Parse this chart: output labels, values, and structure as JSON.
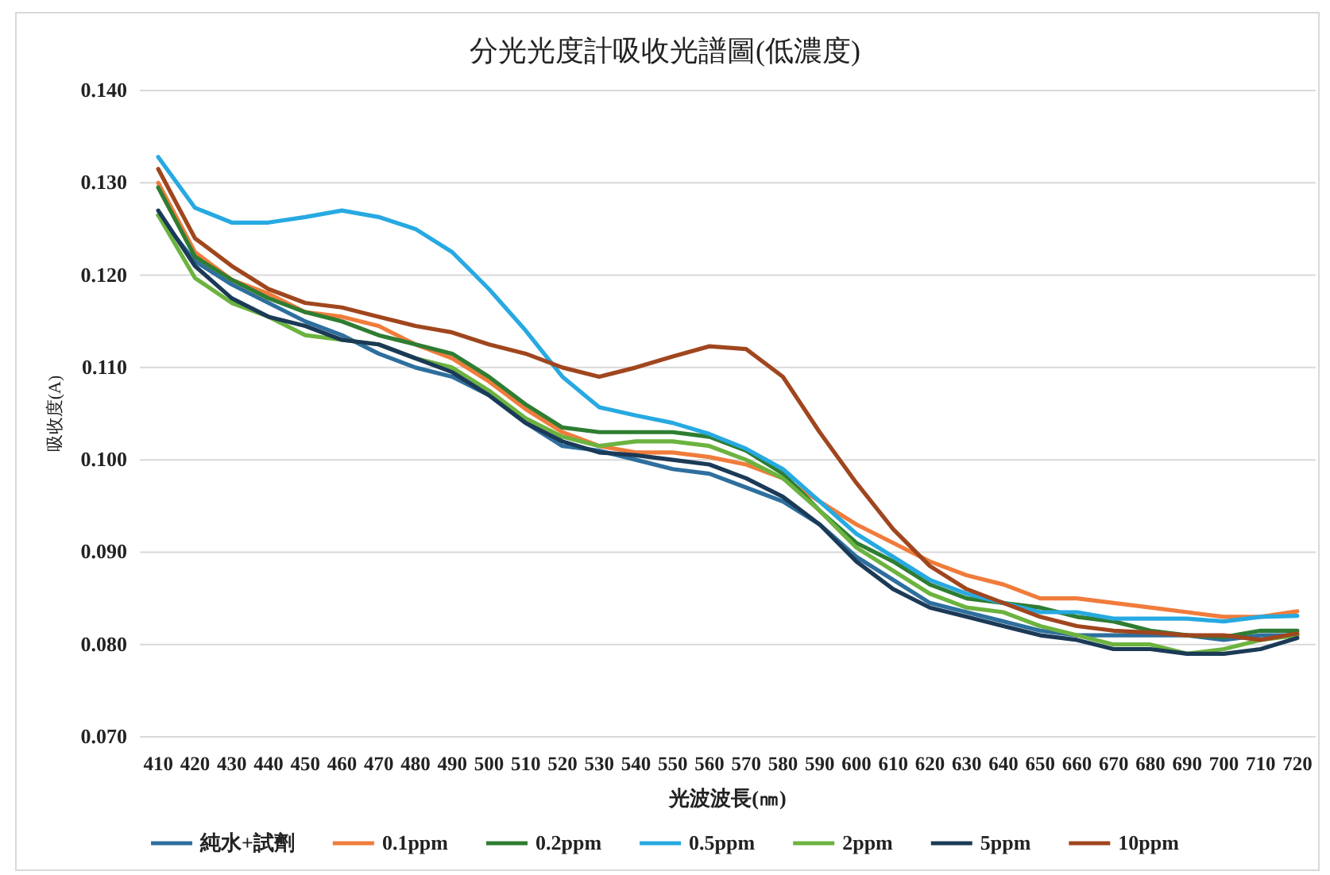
{
  "chart_data": {
    "type": "line",
    "title": "分光光度計吸收光譜圖(低濃度)",
    "xlabel": "光波波長(㎚)",
    "ylabel": "吸收度(A)",
    "categories": [
      "410",
      "420",
      "430",
      "440",
      "450",
      "460",
      "470",
      "480",
      "490",
      "500",
      "510",
      "520",
      "530",
      "540",
      "550",
      "560",
      "570",
      "580",
      "590",
      "600",
      "610",
      "620",
      "630",
      "640",
      "650",
      "660",
      "670",
      "680",
      "690",
      "700",
      "710",
      "720"
    ],
    "ylim": [
      0.07,
      0.14
    ],
    "yticks": [
      {
        "value": 0.07,
        "label": "0.070"
      },
      {
        "value": 0.08,
        "label": "0.080"
      },
      {
        "value": 0.09,
        "label": "0.090"
      },
      {
        "value": 0.1,
        "label": "0.100"
      },
      {
        "value": 0.11,
        "label": "0.110"
      },
      {
        "value": 0.12,
        "label": "0.120"
      },
      {
        "value": 0.13,
        "label": "0.130"
      },
      {
        "value": 0.14,
        "label": "0.140"
      }
    ],
    "grid": "y",
    "legend": "bottom",
    "marker": "none",
    "line_style": "solid",
    "series": [
      {
        "name": "純水+試劑",
        "color": "#2e6f9e",
        "values": [
          0.1265,
          0.1215,
          0.119,
          0.117,
          0.115,
          0.1135,
          0.1115,
          0.11,
          0.109,
          0.107,
          0.104,
          0.1015,
          0.101,
          0.1,
          0.099,
          0.0985,
          0.097,
          0.0955,
          0.093,
          0.0895,
          0.087,
          0.0845,
          0.0835,
          0.0825,
          0.0815,
          0.081,
          0.081,
          0.081,
          0.081,
          0.0805,
          0.081,
          0.081
        ]
      },
      {
        "name": "0.1ppm",
        "color": "#f07c3c",
        "values": [
          0.13,
          0.1225,
          0.1195,
          0.118,
          0.116,
          0.1155,
          0.1145,
          0.1125,
          0.111,
          0.1085,
          0.1055,
          0.103,
          0.1015,
          0.1008,
          0.1008,
          0.1003,
          0.0995,
          0.098,
          0.0955,
          0.093,
          0.091,
          0.089,
          0.0875,
          0.0865,
          0.085,
          0.085,
          0.0845,
          0.084,
          0.0835,
          0.083,
          0.083,
          0.0836
        ]
      },
      {
        "name": "0.2ppm",
        "color": "#2e7d32",
        "values": [
          0.1295,
          0.122,
          0.1195,
          0.1175,
          0.116,
          0.115,
          0.1135,
          0.1125,
          0.1115,
          0.109,
          0.106,
          0.1035,
          0.103,
          0.103,
          0.103,
          0.1025,
          0.101,
          0.0985,
          0.0945,
          0.091,
          0.089,
          0.0865,
          0.085,
          0.0845,
          0.084,
          0.083,
          0.0825,
          0.0815,
          0.081,
          0.0808,
          0.0815,
          0.0815
        ]
      },
      {
        "name": "0.5ppm",
        "color": "#27a9e1",
        "values": [
          0.1328,
          0.1273,
          0.1257,
          0.1257,
          0.1263,
          0.127,
          0.1263,
          0.125,
          0.1225,
          0.1185,
          0.114,
          0.109,
          0.1057,
          0.1048,
          0.104,
          0.1028,
          0.1012,
          0.099,
          0.0955,
          0.092,
          0.0895,
          0.087,
          0.0855,
          0.0845,
          0.0835,
          0.0835,
          0.0828,
          0.0828,
          0.0828,
          0.0825,
          0.083,
          0.0831
        ]
      },
      {
        "name": "2ppm",
        "color": "#6cb33f",
        "values": [
          0.1265,
          0.1197,
          0.117,
          0.1155,
          0.1135,
          0.113,
          0.1125,
          0.111,
          0.11,
          0.1075,
          0.1045,
          0.1025,
          0.1015,
          0.102,
          0.102,
          0.1015,
          0.1,
          0.098,
          0.0945,
          0.0905,
          0.088,
          0.0855,
          0.084,
          0.0835,
          0.082,
          0.081,
          0.08,
          0.08,
          0.079,
          0.0795,
          0.0805,
          0.081
        ]
      },
      {
        "name": "5ppm",
        "color": "#1b3a57",
        "values": [
          0.127,
          0.121,
          0.1175,
          0.1155,
          0.1145,
          0.113,
          0.1125,
          0.111,
          0.1095,
          0.107,
          0.104,
          0.102,
          0.1008,
          0.1005,
          0.1,
          0.0995,
          0.098,
          0.096,
          0.093,
          0.089,
          0.086,
          0.084,
          0.083,
          0.082,
          0.081,
          0.0805,
          0.0795,
          0.0795,
          0.079,
          0.079,
          0.0795,
          0.0807
        ]
      },
      {
        "name": "10ppm",
        "color": "#a0461e",
        "values": [
          0.1315,
          0.124,
          0.121,
          0.1185,
          0.117,
          0.1165,
          0.1155,
          0.1145,
          0.1138,
          0.1125,
          0.1115,
          0.11,
          0.109,
          0.11,
          0.1112,
          0.1123,
          0.112,
          0.109,
          0.103,
          0.0975,
          0.0925,
          0.0885,
          0.086,
          0.0845,
          0.083,
          0.082,
          0.0815,
          0.0813,
          0.081,
          0.081,
          0.0805,
          0.0812
        ]
      }
    ]
  }
}
